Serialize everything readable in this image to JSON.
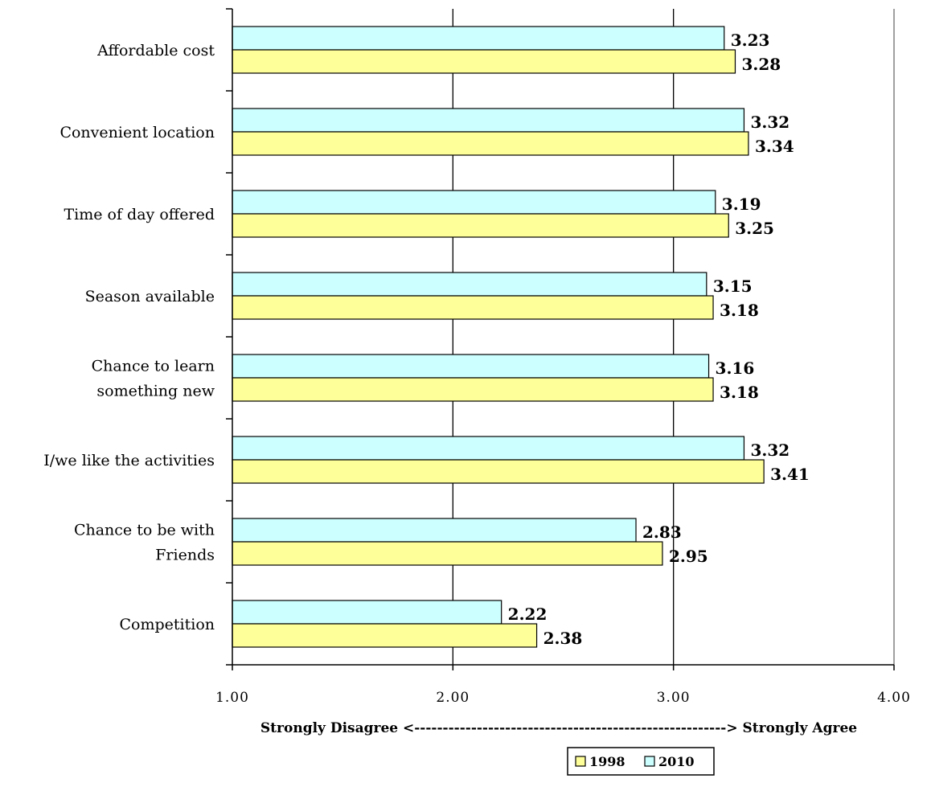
{
  "chart_data": {
    "type": "bar",
    "orientation": "horizontal",
    "categories": [
      [
        "Affordable cost"
      ],
      [
        "Convenient location"
      ],
      [
        "Time of day offered"
      ],
      [
        "Season available"
      ],
      [
        "Chance to learn",
        "something new"
      ],
      [
        "I/we like the activities"
      ],
      [
        "Chance to be with",
        "Friends"
      ],
      [
        "Competition"
      ]
    ],
    "series": [
      {
        "name": "2010",
        "color": "#CCFFFF",
        "values": [
          3.23,
          3.32,
          3.19,
          3.15,
          3.16,
          3.32,
          2.83,
          2.22
        ],
        "labels": [
          "3.23",
          "3.32",
          "3.19",
          "3.15",
          "3.16",
          "3.32",
          "2.83",
          "2.22"
        ]
      },
      {
        "name": "1998",
        "color": "#FFFF99",
        "values": [
          3.28,
          3.34,
          3.25,
          3.18,
          3.18,
          3.41,
          2.95,
          2.38
        ],
        "labels": [
          "3.28",
          "3.34",
          "3.25",
          "3.18",
          "3.18",
          "3.41",
          "2.95",
          "2.38"
        ]
      }
    ],
    "xlim": [
      1.0,
      4.0
    ],
    "xticks": [
      1.0,
      2.0,
      3.0,
      4.0
    ],
    "xtick_labels": [
      "1.00",
      "2.00",
      "3.00",
      "4.00"
    ],
    "xlabel": "Strongly Disagree <-------------------------------------------------------> Strongly Agree",
    "grid": "vertical",
    "legend": {
      "position": "bottom",
      "order": [
        "1998",
        "2010"
      ]
    }
  }
}
